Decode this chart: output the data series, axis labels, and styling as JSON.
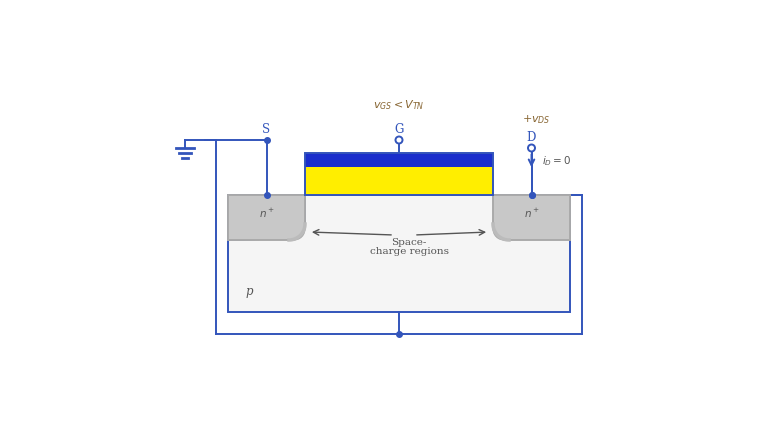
{
  "bg_color": "#ffffff",
  "line_color": "#3355bb",
  "gate_blue": "#1a2ecc",
  "gate_yellow": "#ffee00",
  "body_fill": "#f5f5f5",
  "ndiff_fill": "#c8c8c8",
  "ndiff_edge": "#aaaaaa",
  "text_blue": "#3355bb",
  "text_brown": "#886633",
  "text_dark": "#555555",
  "label_S": "S",
  "label_G": "G",
  "label_D": "D",
  "label_p": "p",
  "label_n": "n",
  "label_plus": "+",
  "label_space1": "Space-",
  "label_space2": "charge regions",
  "fig_w": 7.68,
  "fig_h": 4.32,
  "dpi": 100
}
